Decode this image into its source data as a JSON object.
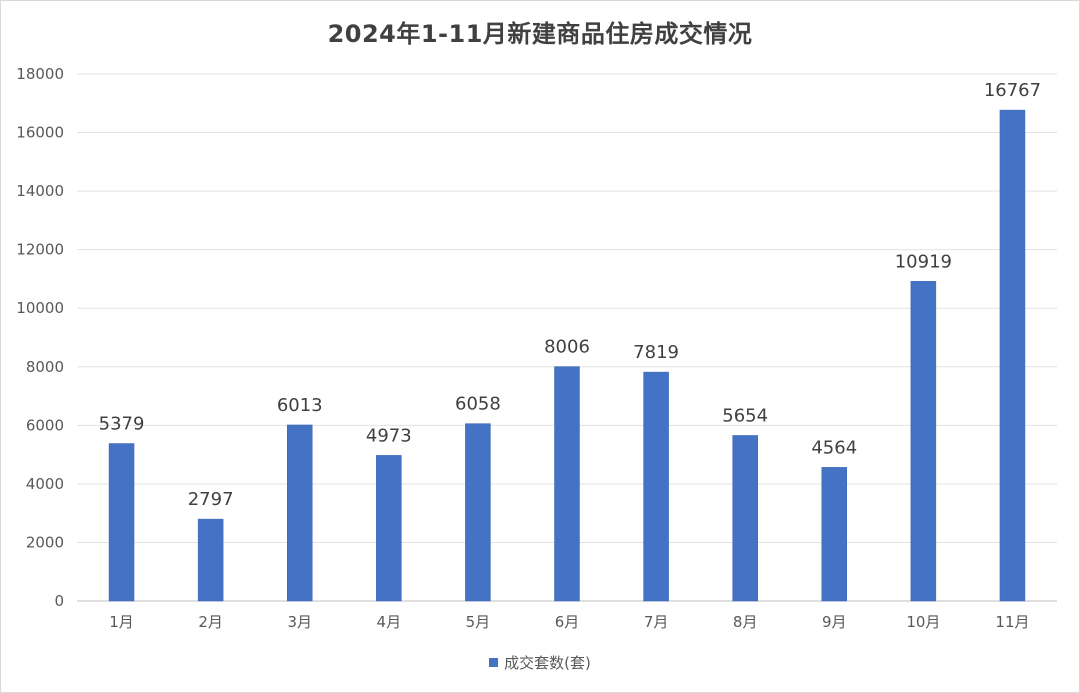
{
  "chart_data": {
    "type": "bar",
    "title": "2024年1-11月新建商品住房成交情况",
    "categories": [
      "1月",
      "2月",
      "3月",
      "4月",
      "5月",
      "6月",
      "7月",
      "8月",
      "9月",
      "10月",
      "11月"
    ],
    "series": [
      {
        "name": "成交套数(套)",
        "values": [
          5379,
          2797,
          6013,
          4973,
          6058,
          8006,
          7819,
          5654,
          4564,
          10919,
          16767
        ]
      }
    ],
    "ylim": [
      0,
      18000
    ],
    "yticks": [
      0,
      2000,
      4000,
      6000,
      8000,
      10000,
      12000,
      14000,
      16000,
      18000
    ],
    "grid": true,
    "legend_position": "bottom",
    "bar_color": "#4472c4"
  }
}
